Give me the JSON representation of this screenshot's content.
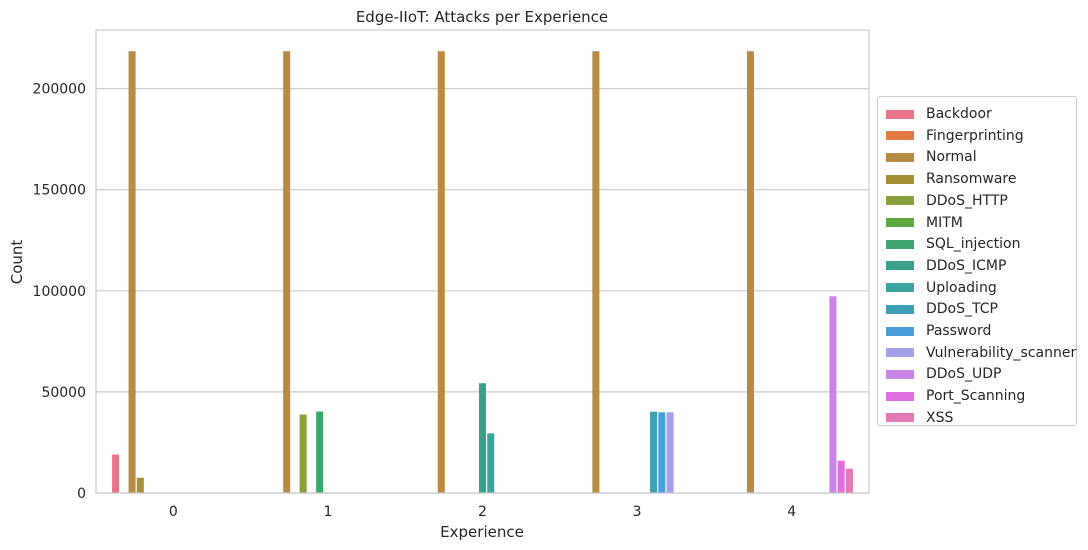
{
  "chart_data": {
    "type": "bar",
    "title": "Edge-IIoT: Attacks per Experience",
    "xlabel": "Experience",
    "ylabel": "Count",
    "categories": [
      "0",
      "1",
      "2",
      "3",
      "4"
    ],
    "ylim": [
      0,
      229000
    ],
    "yticks": [
      0,
      50000,
      100000,
      150000,
      200000
    ],
    "ytick_labels": [
      "0",
      "50000",
      "100000",
      "150000",
      "200000"
    ],
    "grid": "horizontal",
    "legend_position": "outside-right",
    "series": [
      {
        "name": "Backdoor",
        "color": "#e8748a",
        "values": [
          19000,
          0,
          0,
          0,
          0
        ]
      },
      {
        "name": "Fingerprinting",
        "color": "#e07b45",
        "values": [
          0,
          0,
          0,
          0,
          0
        ]
      },
      {
        "name": "Normal",
        "color": "#b98a42",
        "values": [
          218500,
          218500,
          218500,
          218500,
          218500
        ]
      },
      {
        "name": "Ransomware",
        "color": "#a69035",
        "values": [
          7500,
          0,
          0,
          0,
          0
        ]
      },
      {
        "name": "DDoS_HTTP",
        "color": "#88a03b",
        "values": [
          0,
          38800,
          0,
          0,
          0
        ]
      },
      {
        "name": "MITM",
        "color": "#5aa83e",
        "values": [
          0,
          0,
          0,
          0,
          0
        ]
      },
      {
        "name": "SQL_injection",
        "color": "#3da66f",
        "values": [
          0,
          40300,
          0,
          0,
          0
        ]
      },
      {
        "name": "DDoS_ICMP",
        "color": "#3aa08b",
        "values": [
          0,
          0,
          54300,
          0,
          0
        ]
      },
      {
        "name": "Uploading",
        "color": "#3ca39e",
        "values": [
          0,
          0,
          29500,
          0,
          0
        ]
      },
      {
        "name": "DDoS_TCP",
        "color": "#3ea0b6",
        "values": [
          0,
          0,
          0,
          40200,
          0
        ]
      },
      {
        "name": "Password",
        "color": "#4a9edb",
        "values": [
          0,
          0,
          0,
          39900,
          0
        ]
      },
      {
        "name": "Vulnerability_scanner",
        "color": "#a59fea",
        "values": [
          0,
          0,
          0,
          39900,
          0
        ]
      },
      {
        "name": "DDoS_UDP",
        "color": "#c986e8",
        "values": [
          0,
          0,
          0,
          0,
          97300
        ]
      },
      {
        "name": "Port_Scanning",
        "color": "#e070df",
        "values": [
          0,
          0,
          0,
          0,
          16000
        ]
      },
      {
        "name": "XSS",
        "color": "#e578b6",
        "values": [
          0,
          0,
          0,
          0,
          12000
        ]
      }
    ]
  }
}
